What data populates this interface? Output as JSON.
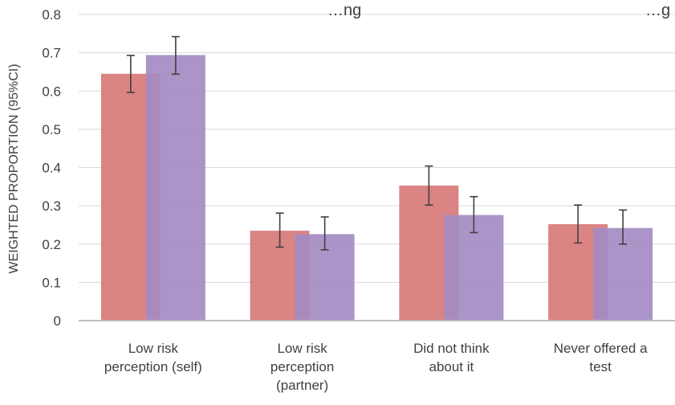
{
  "chart_data": {
    "type": "bar",
    "title": "",
    "top_text_fragments": [
      "…ng",
      "…g"
    ],
    "ylabel": "WEIGHTED PROPORTION (95%CI)",
    "xlabel": "",
    "ylim": [
      0,
      0.8
    ],
    "yticks": [
      "0",
      "0.1",
      "0.2",
      "0.3",
      "0.4",
      "0.5",
      "0.6",
      "0.7",
      "0.8"
    ],
    "grid": true,
    "categories": [
      [
        "Low risk",
        "perception (self)"
      ],
      [
        "Low risk",
        "perception",
        "(partner)"
      ],
      [
        "Did not think",
        "about it"
      ],
      [
        "Never offered a",
        "test"
      ]
    ],
    "series": [
      {
        "color": "#d77a78",
        "values": [
          0.645,
          0.235,
          0.353,
          0.252
        ],
        "ci_low": [
          0.596,
          0.192,
          0.302,
          0.203
        ],
        "ci_high": [
          0.693,
          0.281,
          0.404,
          0.302
        ]
      },
      {
        "color": "#a48bc2",
        "values": [
          0.694,
          0.226,
          0.276,
          0.242
        ],
        "ci_low": [
          0.644,
          0.185,
          0.23,
          0.2
        ],
        "ci_high": [
          0.742,
          0.271,
          0.324,
          0.289
        ]
      }
    ]
  }
}
